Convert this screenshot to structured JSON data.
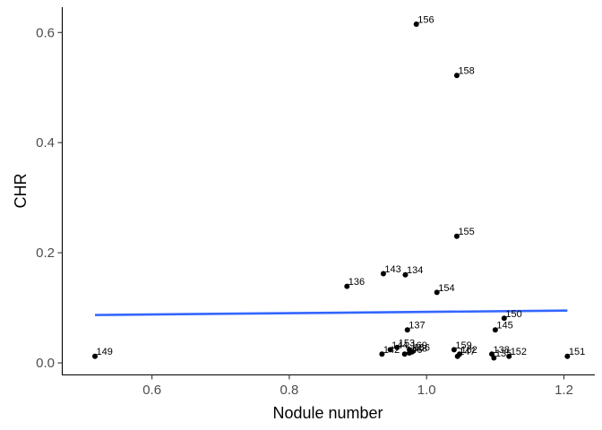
{
  "chart_data": {
    "type": "scatter",
    "xlabel": "Nodule number",
    "ylabel": "CHR",
    "xlim": [
      0.47,
      1.245
    ],
    "ylim": [
      -0.021,
      0.646
    ],
    "xticks": [
      0.6,
      0.8,
      1.0,
      1.2
    ],
    "xtick_labels": [
      "0.6",
      "0.8",
      "1.0",
      "1.2"
    ],
    "yticks": [
      0.0,
      0.2,
      0.4,
      0.6
    ],
    "ytick_labels": [
      "0.0",
      "0.2",
      "0.4",
      "0.6"
    ],
    "grid": false,
    "point_color": "#000000",
    "points": [
      {
        "label": "156",
        "x": 0.985,
        "y": 0.615
      },
      {
        "label": "158",
        "x": 1.044,
        "y": 0.522
      },
      {
        "label": "155",
        "x": 1.044,
        "y": 0.23
      },
      {
        "label": "143",
        "x": 0.937,
        "y": 0.162
      },
      {
        "label": "134",
        "x": 0.969,
        "y": 0.16
      },
      {
        "label": "136",
        "x": 0.884,
        "y": 0.139
      },
      {
        "label": "154",
        "x": 1.015,
        "y": 0.128
      },
      {
        "label": "150",
        "x": 1.113,
        "y": 0.081
      },
      {
        "label": "137",
        "x": 0.972,
        "y": 0.06
      },
      {
        "label": "145",
        "x": 1.1,
        "y": 0.06
      },
      {
        "label": "149",
        "x": 0.517,
        "y": 0.012
      },
      {
        "label": "153",
        "x": 0.957,
        "y": 0.028
      },
      {
        "label": "144",
        "x": 0.947,
        "y": 0.024
      },
      {
        "label": "160",
        "x": 0.975,
        "y": 0.024
      },
      {
        "label": "142",
        "x": 0.935,
        "y": 0.016
      },
      {
        "label": "146",
        "x": 0.968,
        "y": 0.016
      },
      {
        "label": "148",
        "x": 0.975,
        "y": 0.018
      },
      {
        "label": "166",
        "x": 0.979,
        "y": 0.02
      },
      {
        "label": "159",
        "x": 1.04,
        "y": 0.024
      },
      {
        "label": "162",
        "x": 1.048,
        "y": 0.016
      },
      {
        "label": "147",
        "x": 1.045,
        "y": 0.012
      },
      {
        "label": "138",
        "x": 1.095,
        "y": 0.016
      },
      {
        "label": "135",
        "x": 1.098,
        "y": 0.009
      },
      {
        "label": "152",
        "x": 1.12,
        "y": 0.012
      },
      {
        "label": "151",
        "x": 1.205,
        "y": 0.012
      }
    ],
    "trend_line": {
      "color": "#3366FF",
      "x": [
        0.517,
        1.205
      ],
      "y": [
        0.087,
        0.095
      ]
    }
  }
}
